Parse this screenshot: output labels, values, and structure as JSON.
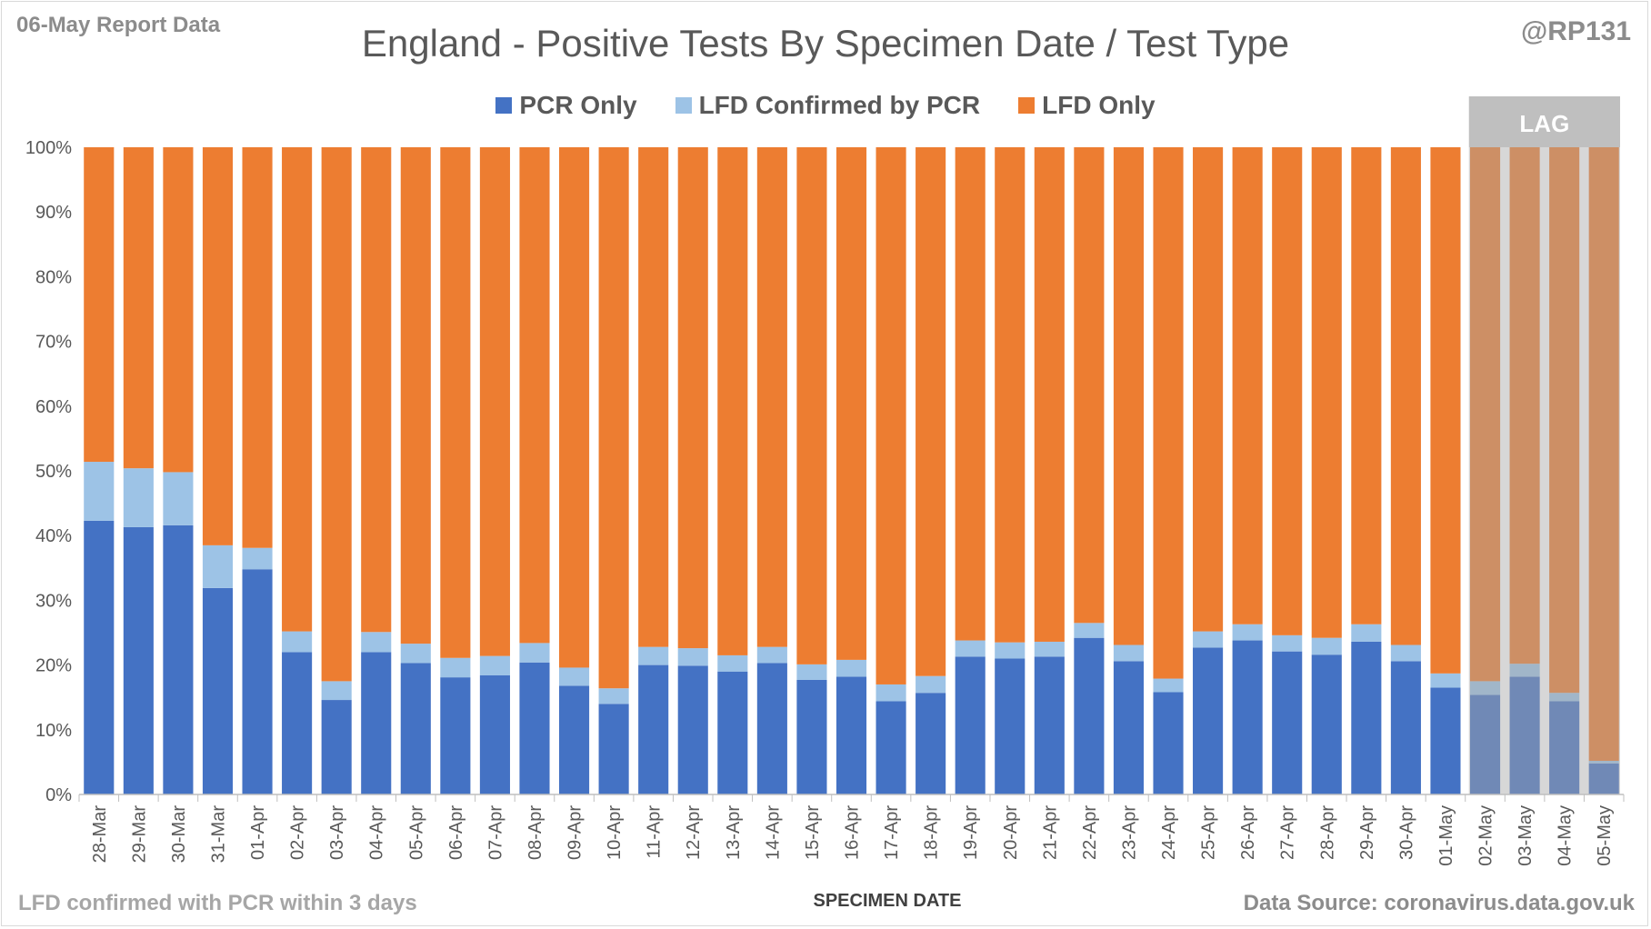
{
  "header": {
    "report_date": "06-May Report Data",
    "handle": "@RP131",
    "title": "England - Positive Tests By Specimen Date / Test Type"
  },
  "footer": {
    "note": "LFD confirmed with PCR within 3 days",
    "source": "Data Source: coronavirus.data.gov.uk"
  },
  "chart_data": {
    "type": "bar",
    "stacked": true,
    "title": "England - Positive Tests By Specimen Date / Test Type",
    "xlabel": "SPECIMEN DATE",
    "ylabel": "",
    "ylim": [
      0,
      100
    ],
    "y_ticks": [
      "0%",
      "10%",
      "20%",
      "30%",
      "40%",
      "50%",
      "60%",
      "70%",
      "80%",
      "90%",
      "100%"
    ],
    "legend_position": "top-center",
    "grid": false,
    "categories": [
      "28-Mar",
      "29-Mar",
      "30-Mar",
      "31-Mar",
      "01-Apr",
      "02-Apr",
      "03-Apr",
      "04-Apr",
      "05-Apr",
      "06-Apr",
      "07-Apr",
      "08-Apr",
      "09-Apr",
      "10-Apr",
      "11-Apr",
      "12-Apr",
      "13-Apr",
      "14-Apr",
      "15-Apr",
      "16-Apr",
      "17-Apr",
      "18-Apr",
      "19-Apr",
      "20-Apr",
      "21-Apr",
      "22-Apr",
      "23-Apr",
      "24-Apr",
      "25-Apr",
      "26-Apr",
      "27-Apr",
      "28-Apr",
      "29-Apr",
      "30-Apr",
      "01-May",
      "02-May",
      "03-May",
      "04-May",
      "05-May"
    ],
    "series": [
      {
        "name": "PCR Only",
        "color": "#4472c4",
        "values": [
          42.3,
          41.3,
          41.6,
          31.9,
          34.8,
          22.0,
          14.6,
          22.0,
          20.3,
          18.1,
          18.4,
          20.4,
          16.8,
          14.0,
          20.0,
          19.9,
          19.0,
          20.3,
          17.7,
          18.2,
          14.4,
          15.7,
          21.3,
          21.0,
          21.3,
          24.2,
          20.6,
          15.8,
          22.7,
          23.8,
          22.1,
          21.6,
          23.6,
          20.6,
          16.5,
          15.4,
          18.2,
          14.4,
          4.8
        ]
      },
      {
        "name": "LFD Confirmed by PCR",
        "color": "#9dc3e6",
        "values": [
          9.1,
          9.1,
          8.2,
          6.6,
          3.3,
          3.2,
          2.9,
          3.1,
          3.0,
          3.0,
          3.0,
          3.0,
          2.8,
          2.4,
          2.8,
          2.7,
          2.5,
          2.5,
          2.4,
          2.6,
          2.6,
          2.6,
          2.5,
          2.5,
          2.3,
          2.3,
          2.5,
          2.1,
          2.5,
          2.5,
          2.5,
          2.6,
          2.7,
          2.5,
          2.2,
          2.1,
          2.0,
          1.3,
          0.4
        ]
      },
      {
        "name": "LFD Only",
        "color": "#ed7d31",
        "values": [
          48.6,
          49.6,
          50.2,
          61.5,
          61.9,
          74.8,
          82.5,
          74.9,
          76.7,
          78.9,
          78.6,
          76.6,
          80.4,
          83.6,
          77.2,
          77.4,
          78.5,
          77.2,
          79.9,
          79.2,
          83.0,
          81.7,
          76.2,
          76.5,
          76.4,
          73.5,
          76.9,
          82.1,
          74.8,
          73.7,
          75.4,
          75.8,
          73.7,
          76.9,
          81.3,
          82.5,
          79.8,
          84.3,
          94.8
        ]
      }
    ],
    "annotations": [
      {
        "text": "LAG",
        "from_category": "02-May",
        "to_category": "05-May",
        "color": "#bfbfbf"
      }
    ]
  }
}
